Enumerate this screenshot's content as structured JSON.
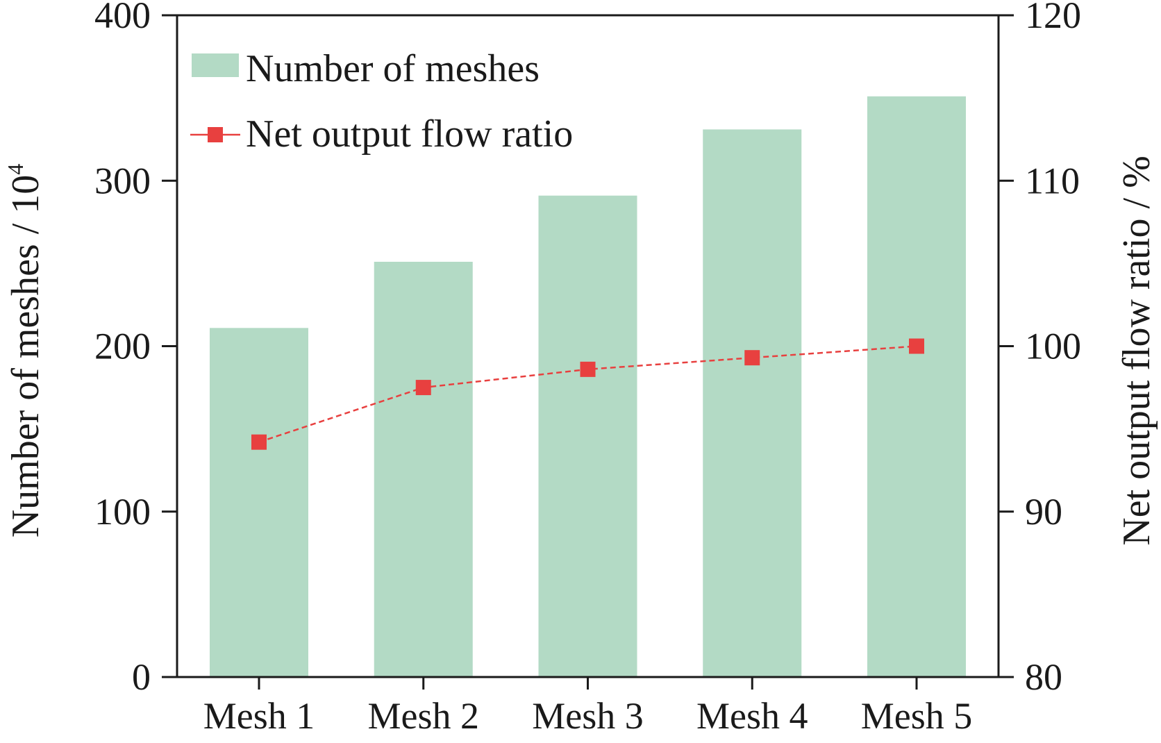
{
  "chart_data": {
    "type": "bar",
    "categories": [
      "Mesh 1",
      "Mesh 2",
      "Mesh 3",
      "Mesh 4",
      "Mesh 5"
    ],
    "series": [
      {
        "name": "Number of meshes",
        "type": "bar",
        "axis": "left",
        "color": "#b3dac5",
        "values": [
          211,
          251,
          291,
          331,
          351
        ]
      },
      {
        "name": "Net output flow ratio",
        "type": "line",
        "axis": "right",
        "color": "#e8403f",
        "marker": "square",
        "line_style": "dashed",
        "values": [
          94.2,
          97.5,
          98.6,
          99.3,
          100.0
        ]
      }
    ],
    "ylabel": "Number of meshes / 10",
    "ylabel_superscript": "4",
    "ylim": [
      0,
      400
    ],
    "yticks": [
      0,
      100,
      200,
      300,
      400
    ],
    "y2label": "Net output flow ratio / %",
    "y2lim": [
      80,
      120
    ],
    "y2ticks": [
      80,
      90,
      100,
      110,
      120
    ],
    "legend_position": "top-left",
    "grid": false
  }
}
